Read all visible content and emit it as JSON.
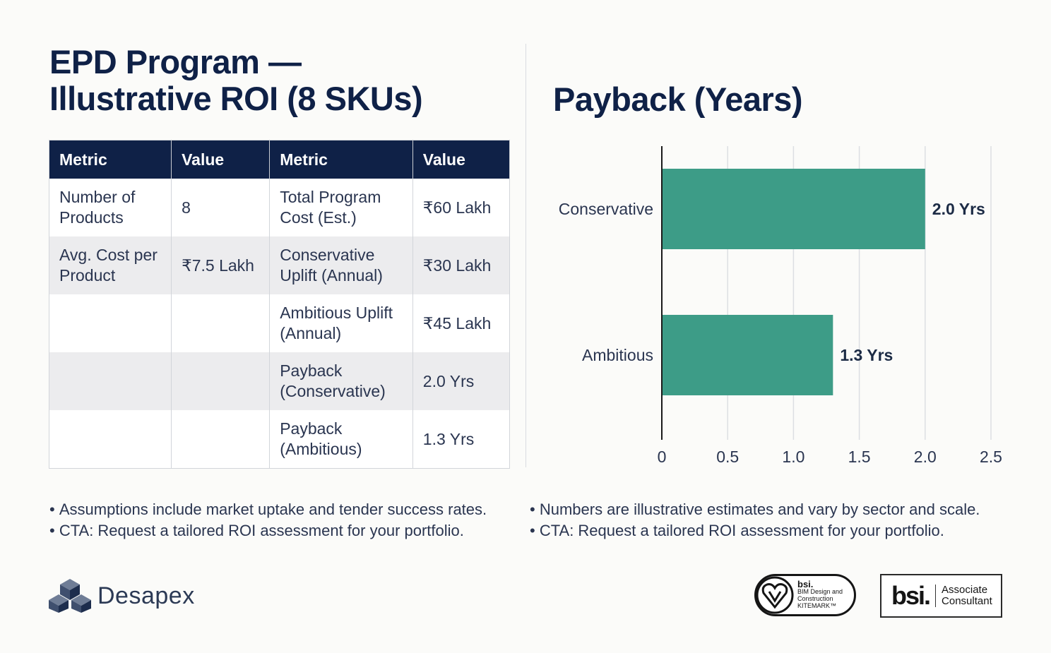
{
  "title": {
    "line1": "EPD Program —",
    "line2": "Illustrative ROI (8 SKUs)"
  },
  "table": {
    "headers": [
      "Metric",
      "Value",
      "Metric",
      "Value"
    ],
    "rows": [
      [
        "Number of Products",
        "8",
        "Total Program Cost (Est.)",
        "₹60 Lakh"
      ],
      [
        "Avg. Cost per Product",
        "₹7.5 Lakh",
        "Conservative Uplift (Annual)",
        "₹30 Lakh"
      ],
      [
        "",
        "",
        "Ambitious Uplift (Annual)",
        "₹45 Lakh"
      ],
      [
        "",
        "",
        "Payback (Conservative)",
        "2.0 Yrs"
      ],
      [
        "",
        "",
        "Payback (Ambitious)",
        "1.3 Yrs"
      ]
    ]
  },
  "chart_data": {
    "type": "bar",
    "orientation": "horizontal",
    "title": "Payback (Years)",
    "categories": [
      "Conservative",
      "Ambitious"
    ],
    "values": [
      2.0,
      1.3
    ],
    "data_labels": [
      "2.0 Yrs",
      "1.3 Yrs"
    ],
    "xlim": [
      0,
      2.5
    ],
    "xticks": [
      "0",
      "0.5",
      "1.0",
      "1.5",
      "2.0",
      "2.5"
    ],
    "grid": "vertical",
    "bar_color": "#3d9c87"
  },
  "bullets": {
    "left": [
      "Assumptions include market uptake and tender success rates.",
      "CTA: Request a tailored ROI assessment for your portfolio."
    ],
    "right": [
      "Numbers are illustrative estimates and vary by sector and scale.",
      "CTA: Request a tailored ROI assessment for your portfolio."
    ]
  },
  "footer": {
    "brand": "Desapex",
    "kitemark": {
      "bsi": "bsi.",
      "line1": "BIM Design and",
      "line2": "Construction",
      "line3": "KITEMARK™"
    },
    "associate": {
      "bsi": "bsi",
      "line1": "Associate",
      "line2": "Consultant"
    }
  },
  "colors": {
    "navy": "#0f2147",
    "teal": "#3d9c87"
  }
}
